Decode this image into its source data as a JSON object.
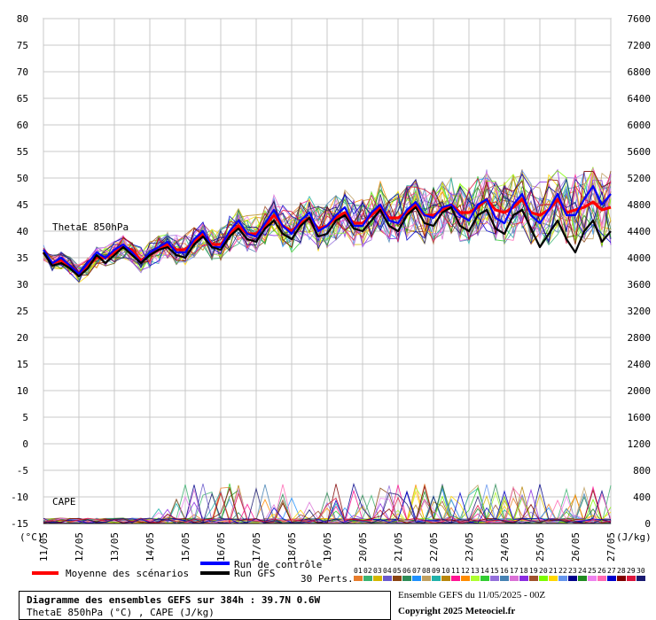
{
  "chart_data": {
    "type": "line",
    "title": "Diagramme des ensembles GEFS sur 384h : 39.7N 0.6W",
    "subtitle": "ThetaE 850hPa (°C) , CAPE (J/kg)",
    "left_axis": {
      "unit": "(°C)",
      "ylim": [
        -15,
        80
      ],
      "ticks": [
        -15,
        -10,
        -5,
        0,
        5,
        10,
        15,
        20,
        25,
        30,
        35,
        40,
        45,
        50,
        55,
        60,
        65,
        70,
        75,
        80
      ]
    },
    "right_axis": {
      "unit": "(J/kg)",
      "ylim": [
        0,
        7600
      ],
      "ticks": [
        0,
        400,
        800,
        1200,
        1600,
        2000,
        2400,
        2800,
        3200,
        3600,
        4000,
        4400,
        4800,
        5200,
        5600,
        6000,
        6400,
        6800,
        7200,
        7600
      ]
    },
    "x_ticks": [
      "11/05",
      "12/05",
      "13/05",
      "14/05",
      "15/05",
      "16/05",
      "17/05",
      "18/05",
      "19/05",
      "20/05",
      "21/05",
      "22/05",
      "23/05",
      "24/05",
      "25/05",
      "26/05",
      "27/05"
    ],
    "annotations": {
      "thetae": "ThetaE 850hPa",
      "cape": "CAPE"
    },
    "legend": {
      "mean": "Moyenne des scénarios",
      "control": "Run de contrôle",
      "gfs": "Run GFS",
      "perts": "30 Perts."
    },
    "pert_labels": [
      "01",
      "02",
      "03",
      "04",
      "05",
      "06",
      "07",
      "08",
      "09",
      "10",
      "11",
      "12",
      "13",
      "14",
      "15",
      "16",
      "17",
      "18",
      "19",
      "20",
      "21",
      "22",
      "23",
      "24",
      "25",
      "26",
      "27",
      "28",
      "29",
      "30"
    ],
    "pert_colors": [
      "#e87d2c",
      "#3cb371",
      "#d4b800",
      "#6a5acd",
      "#8b4513",
      "#2e8b57",
      "#1e90ff",
      "#c0a060",
      "#20b2aa",
      "#b8860b",
      "#ff1493",
      "#ff8c00",
      "#adff2f",
      "#32cd32",
      "#9370db",
      "#4682b4",
      "#da70d6",
      "#8a2be2",
      "#a0522d",
      "#7cfc00",
      "#ffd700",
      "#6495ed",
      "#00008b",
      "#228b22",
      "#ee82ee",
      "#ff69b4",
      "#0000cd",
      "#800000",
      "#dc143c",
      "#191970"
    ],
    "series": [
      {
        "name": "Moyenne des scénarios",
        "color": "#ff0000",
        "x": [
          0,
          1,
          2,
          3,
          4,
          5,
          6,
          7,
          8,
          9,
          10,
          11,
          12,
          13,
          14,
          15,
          16,
          17,
          18,
          19,
          20,
          21,
          22,
          23,
          24,
          25,
          26,
          27,
          28,
          29,
          30,
          31,
          32,
          33,
          34,
          35,
          36,
          37,
          38,
          39,
          40,
          41,
          42,
          43,
          44,
          45,
          46,
          47,
          48,
          49,
          50,
          51,
          52,
          53,
          54,
          55,
          56,
          57,
          58,
          59,
          60,
          61,
          62,
          63,
          64
        ],
        "values": [
          36,
          34,
          34.5,
          33.5,
          32,
          33.5,
          35,
          35,
          36,
          37,
          36.5,
          34.5,
          35.5,
          36.5,
          37.5,
          36.5,
          36.5,
          38,
          39.5,
          37.5,
          37.5,
          39.5,
          41,
          39.5,
          39.5,
          41,
          43,
          41,
          40,
          41.5,
          42.5,
          40.5,
          41,
          42.5,
          43.5,
          41.5,
          41.5,
          43,
          44.5,
          42.5,
          42.5,
          43.5,
          45,
          43,
          43,
          44,
          45,
          43.5,
          43.5,
          44.5,
          46,
          44,
          43.5,
          44.5,
          46,
          43.5,
          43,
          44,
          46,
          43.5,
          44,
          44.5,
          45.5,
          44,
          44.5
        ]
      },
      {
        "name": "Run de contrôle",
        "color": "#0000ff",
        "x": [
          0,
          1,
          2,
          3,
          4,
          5,
          6,
          7,
          8,
          9,
          10,
          11,
          12,
          13,
          14,
          15,
          16,
          17,
          18,
          19,
          20,
          21,
          22,
          23,
          24,
          25,
          26,
          27,
          28,
          29,
          30,
          31,
          32,
          33,
          34,
          35,
          36,
          37,
          38,
          39,
          40,
          41,
          42,
          43,
          44,
          45,
          46,
          47,
          48,
          49,
          50,
          51,
          52,
          53,
          54,
          55,
          56,
          57,
          58,
          59,
          60,
          61,
          62,
          63,
          64
        ],
        "values": [
          36.5,
          34,
          35,
          33.5,
          32,
          34,
          36,
          35,
          36.5,
          37.5,
          36,
          34,
          36,
          37,
          38,
          36,
          36,
          38.5,
          40,
          37,
          37,
          40,
          42,
          39.5,
          39,
          41.5,
          44,
          41,
          39.5,
          42,
          43.5,
          40,
          41,
          43,
          44.5,
          41,
          41,
          43.5,
          45,
          42,
          41.5,
          44,
          45.5,
          43,
          42.5,
          44.5,
          45,
          43,
          42,
          45,
          46,
          42.5,
          41.5,
          45,
          47,
          43,
          41.5,
          44,
          47,
          43,
          43,
          46,
          48.5,
          45,
          47
        ]
      },
      {
        "name": "Run GFS",
        "color": "#000000",
        "x": [
          0,
          1,
          2,
          3,
          4,
          5,
          6,
          7,
          8,
          9,
          10,
          11,
          12,
          13,
          14,
          15,
          16,
          17,
          18,
          19,
          20,
          21,
          22,
          23,
          24,
          25,
          26,
          27,
          28,
          29,
          30,
          31,
          32,
          33,
          34,
          35,
          36,
          37,
          38,
          39,
          40,
          41,
          42,
          43,
          44,
          45,
          46,
          47,
          48,
          49,
          50,
          51,
          52,
          53,
          54,
          55,
          56,
          57,
          58,
          59,
          60,
          61,
          62,
          63,
          64
        ],
        "values": [
          36,
          33.5,
          34,
          33,
          31.5,
          33,
          35.5,
          34,
          35.5,
          37,
          35.5,
          34,
          35.5,
          36.5,
          37,
          35.5,
          35,
          37.5,
          39,
          37,
          36.5,
          39,
          40.5,
          38.5,
          38,
          40.5,
          42,
          39.5,
          38.5,
          41,
          42.5,
          39,
          39.5,
          42,
          43,
          40.5,
          40,
          42,
          44,
          41,
          40,
          43,
          44.5,
          41.5,
          41,
          43.5,
          44.5,
          41,
          40,
          43,
          44,
          40.5,
          39.5,
          43,
          44,
          40.5,
          37,
          39.5,
          42,
          38.5,
          36,
          40,
          42,
          38,
          40
        ]
      }
    ]
  }
}
